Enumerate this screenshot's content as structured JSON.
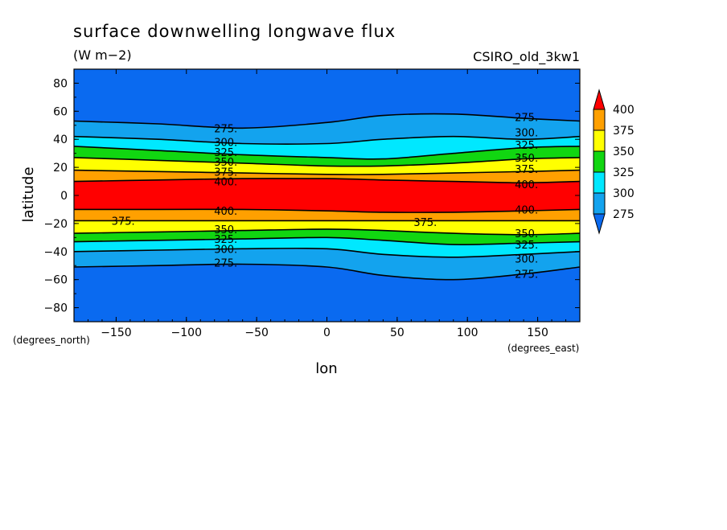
{
  "chart_data": {
    "type": "heatmap",
    "title": "surface downwelling longwave flux",
    "units": "(W m−2)",
    "model": "CSIRO_old_3kw1",
    "xlabel": "lon",
    "ylabel": "latitude",
    "x_unit_label": "(degrees_east)",
    "y_unit_label": "(degrees_north)",
    "xlim": [
      -180,
      180
    ],
    "ylim": [
      -90,
      90
    ],
    "xticks": [
      -150,
      -100,
      -50,
      0,
      50,
      100,
      150
    ],
    "xtick_labels": [
      "−150",
      "−100",
      "−50",
      "0",
      "50",
      "100",
      "150"
    ],
    "yticks": [
      80,
      60,
      40,
      20,
      0,
      -20,
      -40,
      -60,
      -80
    ],
    "ytick_labels": [
      "80",
      "60",
      "40",
      "20",
      "0",
      "−20",
      "−40",
      "−60",
      "−80"
    ],
    "levels": [
      275,
      300,
      325,
      350,
      375,
      400
    ],
    "colorbar_labels": [
      "400",
      "375",
      "350",
      "325",
      "300",
      "275"
    ],
    "colorbar_extends": "both",
    "colors": {
      "below_275": "#0a6af0",
      "275_300": "#13a3ee",
      "300_325": "#00e8ff",
      "325_350": "#11d611",
      "350_375": "#ffff00",
      "375_400": "#ffa000",
      "above_400": "#ff0000"
    },
    "contours": [
      {
        "level": 275,
        "hemisphere": "north",
        "lon": [
          -180,
          -120,
          -60,
          0,
          40,
          90,
          140,
          180
        ],
        "lat": [
          53,
          51,
          48,
          52,
          57,
          58,
          55,
          53
        ]
      },
      {
        "level": 300,
        "hemisphere": "north",
        "lon": [
          -180,
          -120,
          -60,
          0,
          40,
          90,
          140,
          180
        ],
        "lat": [
          42,
          40,
          37,
          37,
          40,
          42,
          40,
          42
        ]
      },
      {
        "level": 325,
        "hemisphere": "north",
        "lon": [
          -180,
          -120,
          -60,
          0,
          40,
          90,
          140,
          180
        ],
        "lat": [
          35,
          32,
          29,
          27,
          26,
          30,
          34,
          35
        ]
      },
      {
        "level": 350,
        "hemisphere": "north",
        "lon": [
          -180,
          -120,
          -60,
          0,
          40,
          90,
          140,
          180
        ],
        "lat": [
          27,
          25,
          23,
          21,
          21,
          23,
          26,
          27
        ]
      },
      {
        "level": 375,
        "hemisphere": "north",
        "lon": [
          -180,
          -120,
          -60,
          0,
          40,
          90,
          140,
          180
        ],
        "lat": [
          18,
          17,
          16,
          15,
          15,
          16,
          17,
          18
        ]
      },
      {
        "level": 400,
        "hemisphere": "north",
        "lon": [
          -180,
          -120,
          -60,
          0,
          40,
          90,
          140,
          180
        ],
        "lat": [
          10,
          11,
          12,
          12,
          11,
          10,
          9,
          10
        ]
      },
      {
        "level": 400,
        "hemisphere": "south",
        "lon": [
          -180,
          -120,
          -60,
          0,
          40,
          90,
          140,
          180
        ],
        "lat": [
          -10,
          -10,
          -10,
          -11,
          -12,
          -12,
          -11,
          -10
        ]
      },
      {
        "level": 375,
        "hemisphere": "south",
        "lon": [
          -180,
          -120,
          -60,
          0,
          40,
          90,
          140,
          180
        ],
        "lat": [
          -18,
          -18,
          -18,
          -18,
          -18,
          -18,
          -18,
          -18
        ]
      },
      {
        "level": 350,
        "hemisphere": "south",
        "lon": [
          -180,
          -120,
          -60,
          0,
          40,
          90,
          140,
          180
        ],
        "lat": [
          -27,
          -26,
          -25,
          -24,
          -25,
          -27,
          -28,
          -27
        ]
      },
      {
        "level": 325,
        "hemisphere": "south",
        "lon": [
          -180,
          -120,
          -60,
          0,
          40,
          90,
          140,
          180
        ],
        "lat": [
          -33,
          -32,
          -31,
          -30,
          -32,
          -35,
          -34,
          -33
        ]
      },
      {
        "level": 300,
        "hemisphere": "south",
        "lon": [
          -180,
          -120,
          -60,
          0,
          40,
          90,
          140,
          180
        ],
        "lat": [
          -40,
          -39,
          -38,
          -38,
          -42,
          -44,
          -42,
          -40
        ]
      },
      {
        "level": 275,
        "hemisphere": "south",
        "lon": [
          -180,
          -120,
          -60,
          0,
          40,
          90,
          140,
          180
        ],
        "lat": [
          -51,
          -50,
          -49,
          -51,
          -57,
          -60,
          -56,
          -51
        ]
      }
    ],
    "contour_labels": [
      {
        "text": "275.",
        "lon": -72,
        "lat": 48
      },
      {
        "text": "300.",
        "lon": -72,
        "lat": 38
      },
      {
        "text": "325.",
        "lon": -72,
        "lat": 31
      },
      {
        "text": "350.",
        "lon": -72,
        "lat": 24
      },
      {
        "text": "375.",
        "lon": -72,
        "lat": 17
      },
      {
        "text": "400.",
        "lon": -72,
        "lat": 10
      },
      {
        "text": "400.",
        "lon": -72,
        "lat": -11
      },
      {
        "text": "350.",
        "lon": -72,
        "lat": -24
      },
      {
        "text": "325.",
        "lon": -72,
        "lat": -31
      },
      {
        "text": "300.",
        "lon": -72,
        "lat": -38
      },
      {
        "text": "275.",
        "lon": -72,
        "lat": -48
      },
      {
        "text": "375.",
        "lon": -145,
        "lat": -18
      },
      {
        "text": "375.",
        "lon": 70,
        "lat": -19
      },
      {
        "text": "275.",
        "lon": 142,
        "lat": 56
      },
      {
        "text": "300.",
        "lon": 142,
        "lat": 45
      },
      {
        "text": "325.",
        "lon": 142,
        "lat": 36
      },
      {
        "text": "350.",
        "lon": 142,
        "lat": 27
      },
      {
        "text": "375.",
        "lon": 142,
        "lat": 19
      },
      {
        "text": "400.",
        "lon": 142,
        "lat": 8
      },
      {
        "text": "400.",
        "lon": 142,
        "lat": -10
      },
      {
        "text": "350.",
        "lon": 142,
        "lat": -27
      },
      {
        "text": "325.",
        "lon": 142,
        "lat": -35
      },
      {
        "text": "300.",
        "lon": 142,
        "lat": -45
      },
      {
        "text": "275.",
        "lon": 142,
        "lat": -56
      }
    ]
  }
}
